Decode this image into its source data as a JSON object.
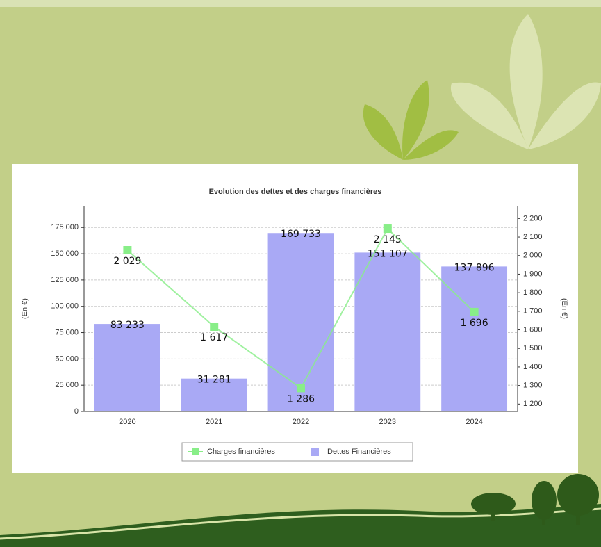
{
  "chart_data": {
    "type": "bar",
    "title": "Evolution des dettes et des charges financières",
    "y_label": "(En €)",
    "y2_label": "(En €)",
    "categories": [
      "2020",
      "2021",
      "2022",
      "2023",
      "2024"
    ],
    "series": [
      {
        "name": "Charges financières",
        "type": "line",
        "axis": "y2",
        "color": "#88ee88",
        "values": [
          2029,
          1617,
          1286,
          2145,
          1696
        ],
        "value_labels": [
          "2 029",
          "1 617",
          "1 286",
          "2 145",
          "1 696"
        ]
      },
      {
        "name": "Dettes Financières",
        "type": "bar",
        "color": "#a9a9f5",
        "values": [
          83233,
          31281,
          169733,
          151107,
          137896
        ],
        "value_labels": [
          "83 233",
          "31 281",
          "169 733",
          "151 107",
          "137 896"
        ]
      }
    ],
    "ylim": [
      0,
      195000
    ],
    "yticks": [
      0,
      {
        "value": 25000,
        "label": "25 000"
      },
      {
        "value": 50000,
        "label": "50 000"
      },
      {
        "value": 75000,
        "label": "75 000"
      },
      {
        "value": 100000,
        "label": "100 000"
      },
      {
        "value": 125000,
        "label": "125 000"
      },
      {
        "value": 150000,
        "label": "150 000"
      },
      {
        "value": 175000,
        "label": "175 000"
      }
    ],
    "y2lim": [
      1160,
      2265
    ],
    "y2ticks": [
      {
        "value": 1200,
        "label": "1 200"
      },
      {
        "value": 1300,
        "label": "1 300"
      },
      {
        "value": 1400,
        "label": "1 400"
      },
      {
        "value": 1500,
        "label": "1 500"
      },
      {
        "value": 1600,
        "label": "1 600"
      },
      {
        "value": 1700,
        "label": "1 700"
      },
      {
        "value": 1800,
        "label": "1 800"
      },
      {
        "value": 1900,
        "label": "1 900"
      },
      {
        "value": 2000,
        "label": "2 000"
      },
      {
        "value": 2100,
        "label": "2 100"
      },
      {
        "value": 2200,
        "label": "2 200"
      }
    ],
    "grid": true,
    "legend": "bottom"
  }
}
